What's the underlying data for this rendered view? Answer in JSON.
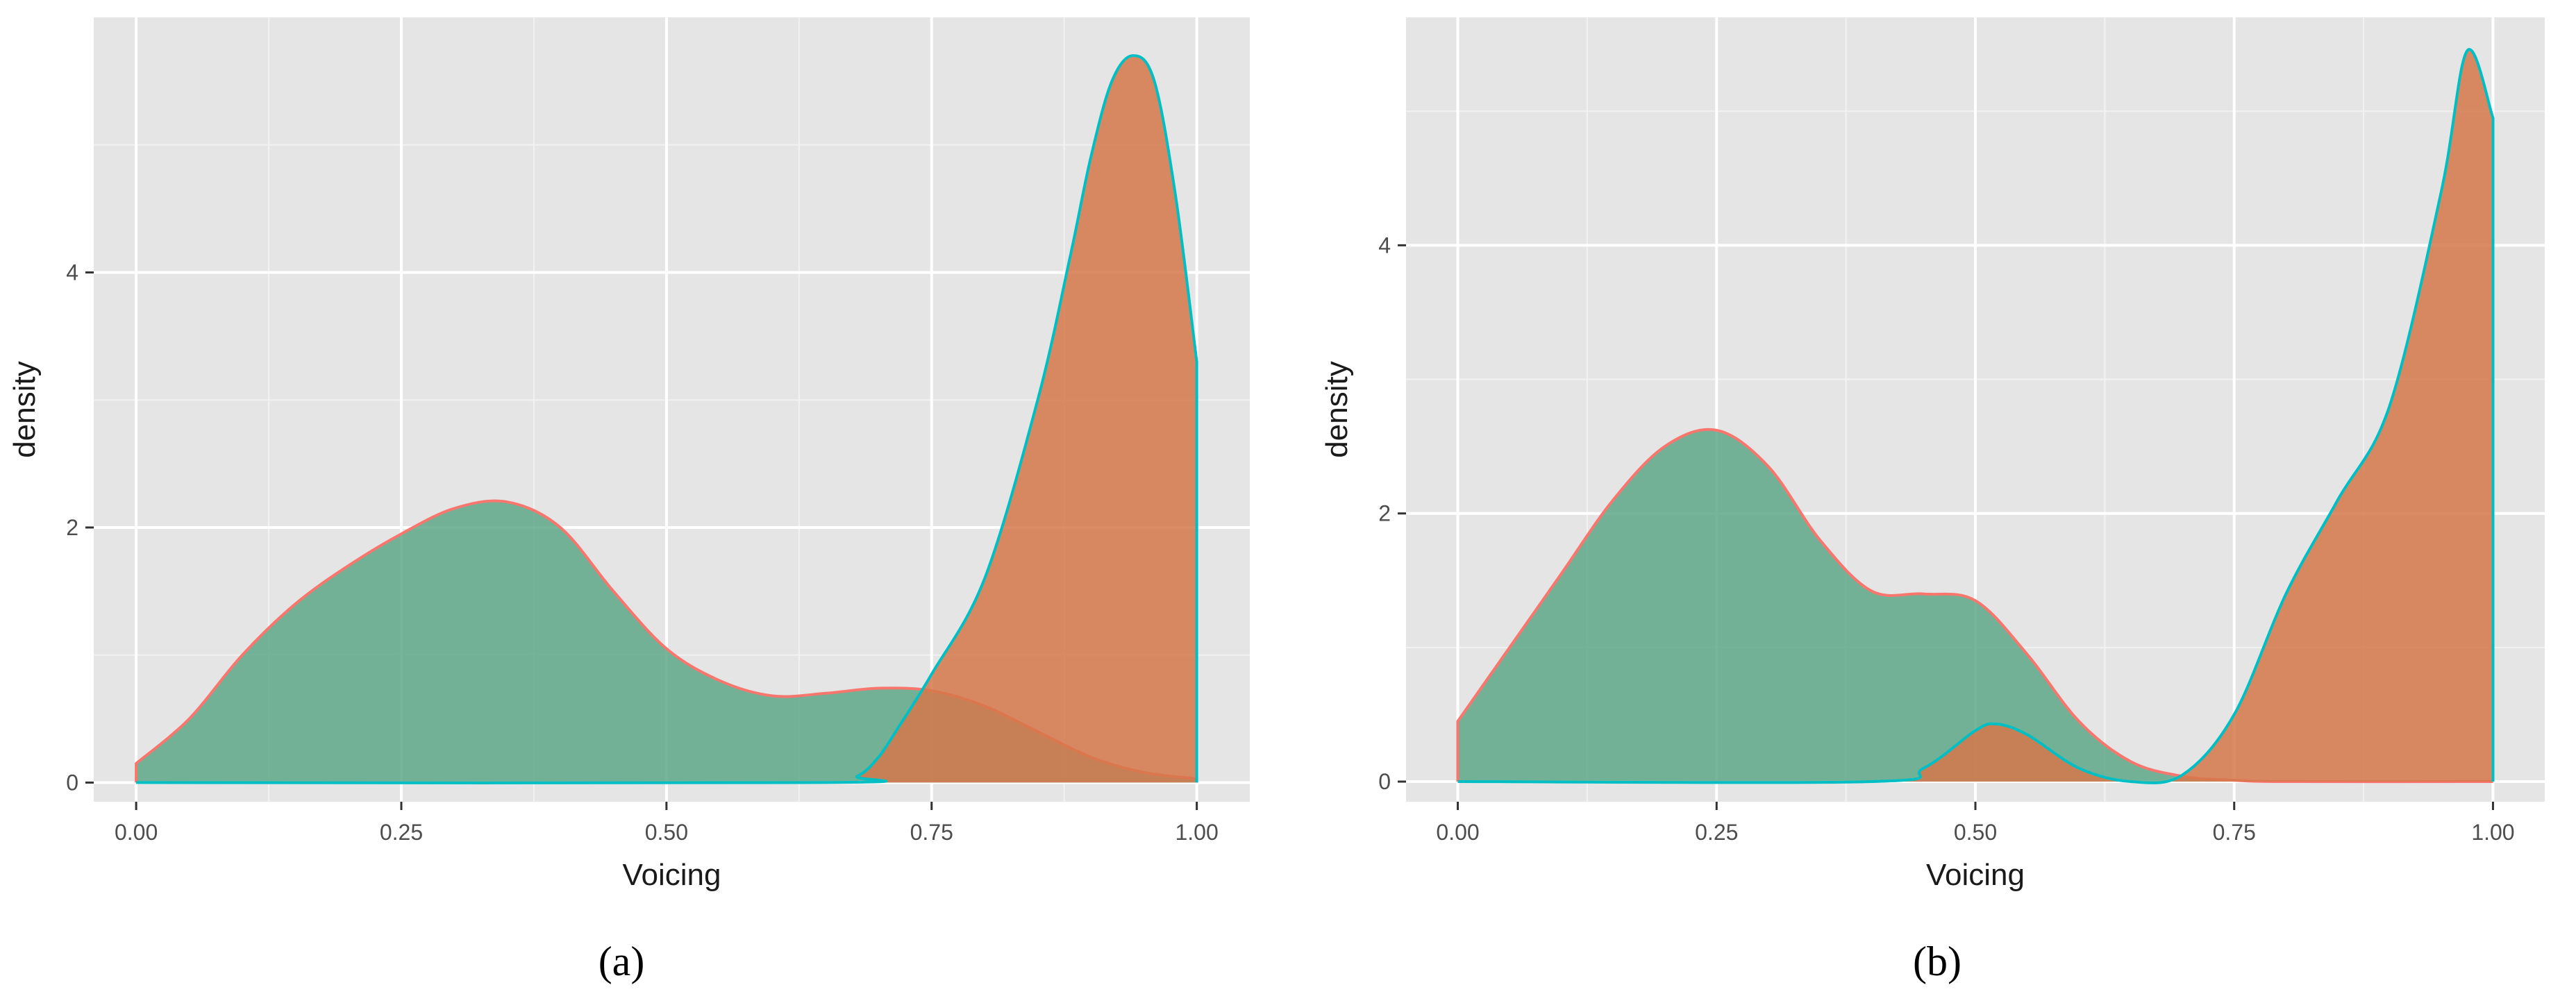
{
  "panel_labels": [
    "(a)",
    "(b)"
  ],
  "colors": {
    "panel_bg": "#E5E5E5",
    "grid_major": "#FFFFFF",
    "grid_minor": "#F2F2F2",
    "tick": "#333333",
    "green_fill": "#5FA88A",
    "orange_fill": "#D6784A",
    "red_line": "#F8766D",
    "teal_line": "#00BFC4"
  },
  "chart_data": [
    {
      "type": "area",
      "panel": "(a)",
      "xlabel": "Voicing",
      "ylabel": "density",
      "xlim": [
        -0.04,
        1.05
      ],
      "ylim": [
        -0.15,
        6.0
      ],
      "xticks": [
        0.0,
        0.25,
        0.5,
        0.75,
        1.0
      ],
      "xtick_labels": [
        "0.00",
        "0.25",
        "0.50",
        "0.75",
        "1.00"
      ],
      "yticks": [
        0,
        2,
        4
      ],
      "ytick_labels": [
        "0",
        "2",
        "4"
      ],
      "grid": true,
      "series": [
        {
          "fill": "green",
          "line": "red",
          "x": [
            0.0,
            0.05,
            0.1,
            0.15,
            0.2,
            0.25,
            0.3,
            0.35,
            0.4,
            0.45,
            0.5,
            0.55,
            0.6,
            0.65,
            0.7,
            0.75,
            0.8,
            0.85,
            0.9,
            0.95,
            1.0
          ],
          "y": [
            0.15,
            0.5,
            1.0,
            1.4,
            1.7,
            1.95,
            2.15,
            2.2,
            2.0,
            1.5,
            1.05,
            0.8,
            0.68,
            0.7,
            0.74,
            0.72,
            0.6,
            0.4,
            0.2,
            0.08,
            0.03
          ]
        },
        {
          "fill": "orange",
          "line": "teal",
          "x": [
            0.0,
            0.65,
            0.68,
            0.7,
            0.72,
            0.75,
            0.8,
            0.85,
            0.88,
            0.9,
            0.92,
            0.94,
            0.96,
            0.98,
            1.0
          ],
          "y": [
            0.0,
            0.0,
            0.05,
            0.2,
            0.45,
            0.85,
            1.6,
            3.0,
            4.1,
            4.9,
            5.5,
            5.7,
            5.5,
            4.6,
            3.3
          ]
        }
      ]
    },
    {
      "type": "area",
      "panel": "(b)",
      "xlabel": "Voicing",
      "ylabel": "density",
      "xlim": [
        -0.05,
        1.05
      ],
      "ylim": [
        -0.15,
        5.7
      ],
      "xticks": [
        0.0,
        0.25,
        0.5,
        0.75,
        1.0
      ],
      "xtick_labels": [
        "0.00",
        "0.25",
        "0.50",
        "0.75",
        "1.00"
      ],
      "yticks": [
        0,
        2,
        4
      ],
      "ytick_labels": [
        "0",
        "2",
        "4"
      ],
      "grid": true,
      "series": [
        {
          "fill": "green",
          "line": "red",
          "x": [
            0.0,
            0.05,
            0.1,
            0.15,
            0.2,
            0.25,
            0.3,
            0.35,
            0.4,
            0.45,
            0.5,
            0.55,
            0.6,
            0.65,
            0.7,
            0.75,
            0.8,
            1.0
          ],
          "y": [
            0.45,
            1.0,
            1.55,
            2.1,
            2.5,
            2.62,
            2.35,
            1.8,
            1.42,
            1.4,
            1.35,
            0.95,
            0.45,
            0.15,
            0.04,
            0.01,
            0.0,
            0.0
          ]
        },
        {
          "fill": "orange",
          "line": "teal",
          "x": [
            0.0,
            0.4,
            0.45,
            0.5,
            0.52,
            0.55,
            0.6,
            0.65,
            0.7,
            0.75,
            0.8,
            0.85,
            0.9,
            0.95,
            0.975,
            1.0
          ],
          "y": [
            0.0,
            0.0,
            0.1,
            0.38,
            0.43,
            0.35,
            0.1,
            0.0,
            0.05,
            0.5,
            1.4,
            2.1,
            2.8,
            4.4,
            5.45,
            4.95
          ]
        }
      ]
    }
  ]
}
